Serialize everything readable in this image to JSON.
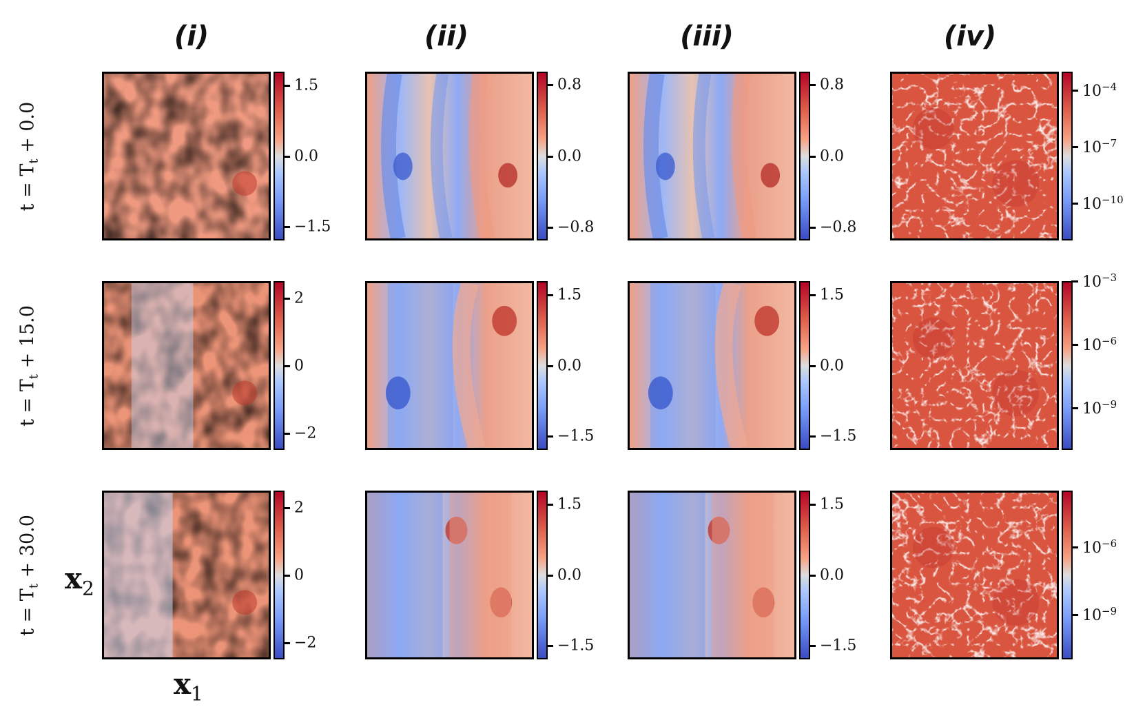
{
  "chart_data": {
    "type": "heatmap",
    "columns": [
      {
        "id": "col-i",
        "title": "(i)"
      },
      {
        "id": "col-ii",
        "title": "(ii)"
      },
      {
        "id": "col-iii",
        "title": "(iii)"
      },
      {
        "id": "col-iv",
        "title": "(iv)"
      }
    ],
    "rows": [
      {
        "label_prefix": "t = T",
        "label_sub": "t",
        "label_suffix": " + 0.0",
        "time_offset": 0.0
      },
      {
        "label_prefix": "t = T",
        "label_sub": "t",
        "label_suffix": " + 15.0",
        "time_offset": 15.0
      },
      {
        "label_prefix": "t = T",
        "label_sub": "t",
        "label_suffix": " + 30.0",
        "time_offset": 30.0
      }
    ],
    "xlabel": {
      "base": "x",
      "sub": "1"
    },
    "ylabel": {
      "base": "x",
      "sub": "2"
    },
    "colormap": "coolwarm",
    "panels": [
      [
        {
          "colorbar_ticks": [
            {
              "label": "1.5",
              "value": 1.5
            },
            {
              "label": "0.0",
              "value": 0.0
            },
            {
              "label": "−1.5",
              "value": -1.5
            }
          ],
          "clim": [
            -1.8,
            1.8
          ],
          "scale": "linear"
        },
        {
          "colorbar_ticks": [
            {
              "label": "0.8",
              "value": 0.8
            },
            {
              "label": "0.0",
              "value": 0.0
            },
            {
              "label": "−0.8",
              "value": -0.8
            }
          ],
          "clim": [
            -0.95,
            0.95
          ],
          "scale": "linear"
        },
        {
          "colorbar_ticks": [
            {
              "label": "0.8",
              "value": 0.8
            },
            {
              "label": "0.0",
              "value": 0.0
            },
            {
              "label": "−0.8",
              "value": -0.8
            }
          ],
          "clim": [
            -0.95,
            0.95
          ],
          "scale": "linear"
        },
        {
          "colorbar_ticks": [
            {
              "label": "10",
              "exp": "−4",
              "value": -4
            },
            {
              "label": "10",
              "exp": "−7",
              "value": -7
            },
            {
              "label": "10",
              "exp": "−10",
              "value": -10
            }
          ],
          "clim": [
            -12,
            -3
          ],
          "scale": "log"
        }
      ],
      [
        {
          "colorbar_ticks": [
            {
              "label": "2",
              "value": 2
            },
            {
              "label": "0",
              "value": 0
            },
            {
              "label": "−2",
              "value": -2
            }
          ],
          "clim": [
            -2.5,
            2.5
          ],
          "scale": "linear"
        },
        {
          "colorbar_ticks": [
            {
              "label": "1.5",
              "value": 1.5
            },
            {
              "label": "0.0",
              "value": 0.0
            },
            {
              "label": "−1.5",
              "value": -1.5
            }
          ],
          "clim": [
            -1.8,
            1.8
          ],
          "scale": "linear"
        },
        {
          "colorbar_ticks": [
            {
              "label": "1.5",
              "value": 1.5
            },
            {
              "label": "0.0",
              "value": 0.0
            },
            {
              "label": "−1.5",
              "value": -1.5
            }
          ],
          "clim": [
            -1.8,
            1.8
          ],
          "scale": "linear"
        },
        {
          "colorbar_ticks": [
            {
              "label": "10",
              "exp": "−3",
              "value": -3
            },
            {
              "label": "10",
              "exp": "−6",
              "value": -6
            },
            {
              "label": "10",
              "exp": "−9",
              "value": -9
            }
          ],
          "clim": [
            -11,
            -3
          ],
          "scale": "log"
        }
      ],
      [
        {
          "colorbar_ticks": [
            {
              "label": "2",
              "value": 2
            },
            {
              "label": "0",
              "value": 0
            },
            {
              "label": "−2",
              "value": -2
            }
          ],
          "clim": [
            -2.5,
            2.5
          ],
          "scale": "linear"
        },
        {
          "colorbar_ticks": [
            {
              "label": "1.5",
              "value": 1.5
            },
            {
              "label": "0.0",
              "value": 0.0
            },
            {
              "label": "−1.5",
              "value": -1.5
            }
          ],
          "clim": [
            -1.8,
            1.8
          ],
          "scale": "linear"
        },
        {
          "colorbar_ticks": [
            {
              "label": "1.5",
              "value": 1.5
            },
            {
              "label": "0.0",
              "value": 0.0
            },
            {
              "label": "−1.5",
              "value": -1.5
            }
          ],
          "clim": [
            -1.8,
            1.8
          ],
          "scale": "linear"
        },
        {
          "colorbar_ticks": [
            {
              "label": "10",
              "exp": "−6",
              "value": -6
            },
            {
              "label": "10",
              "exp": "−9",
              "value": -9
            }
          ],
          "clim": [
            -11,
            -3.5
          ],
          "scale": "log"
        }
      ]
    ]
  },
  "colors": {
    "cmap_high": "#b40426",
    "cmap_mid": "#dddddd",
    "cmap_low": "#3b4cc0"
  }
}
